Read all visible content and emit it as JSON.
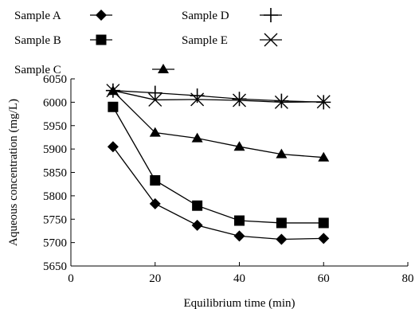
{
  "chart_data": {
    "type": "line",
    "xlabel": "Equilibrium time (min)",
    "ylabel": "Aqueous concentration (mg/L)",
    "xlim": [
      0,
      80
    ],
    "ylim": [
      5650,
      6050
    ],
    "xticks": [
      0,
      20,
      40,
      60,
      80
    ],
    "yticks": [
      5650,
      5700,
      5750,
      5800,
      5850,
      5900,
      5950,
      6000,
      6050
    ],
    "grid": false,
    "legend_placement": "top-left",
    "x": [
      10,
      20,
      30,
      40,
      50,
      60
    ],
    "series": [
      {
        "name": "Sample A",
        "marker": "diamond",
        "values": [
          5905,
          5783,
          5737,
          5714,
          5707,
          5709
        ]
      },
      {
        "name": "Sample B",
        "marker": "square",
        "values": [
          5990,
          5833,
          5779,
          5747,
          5742,
          5742
        ]
      },
      {
        "name": "Sample C",
        "marker": "triangle",
        "values": [
          6024,
          5935,
          5923,
          5905,
          5889,
          5882
        ]
      },
      {
        "name": "Sample D",
        "marker": "plus",
        "values": [
          6025,
          6020,
          6014,
          6007,
          6003,
          6000
        ]
      },
      {
        "name": "Sample E",
        "marker": "x",
        "values": [
          6025,
          6005,
          6006,
          6004,
          6000,
          6001
        ]
      }
    ],
    "color": "#000000"
  }
}
